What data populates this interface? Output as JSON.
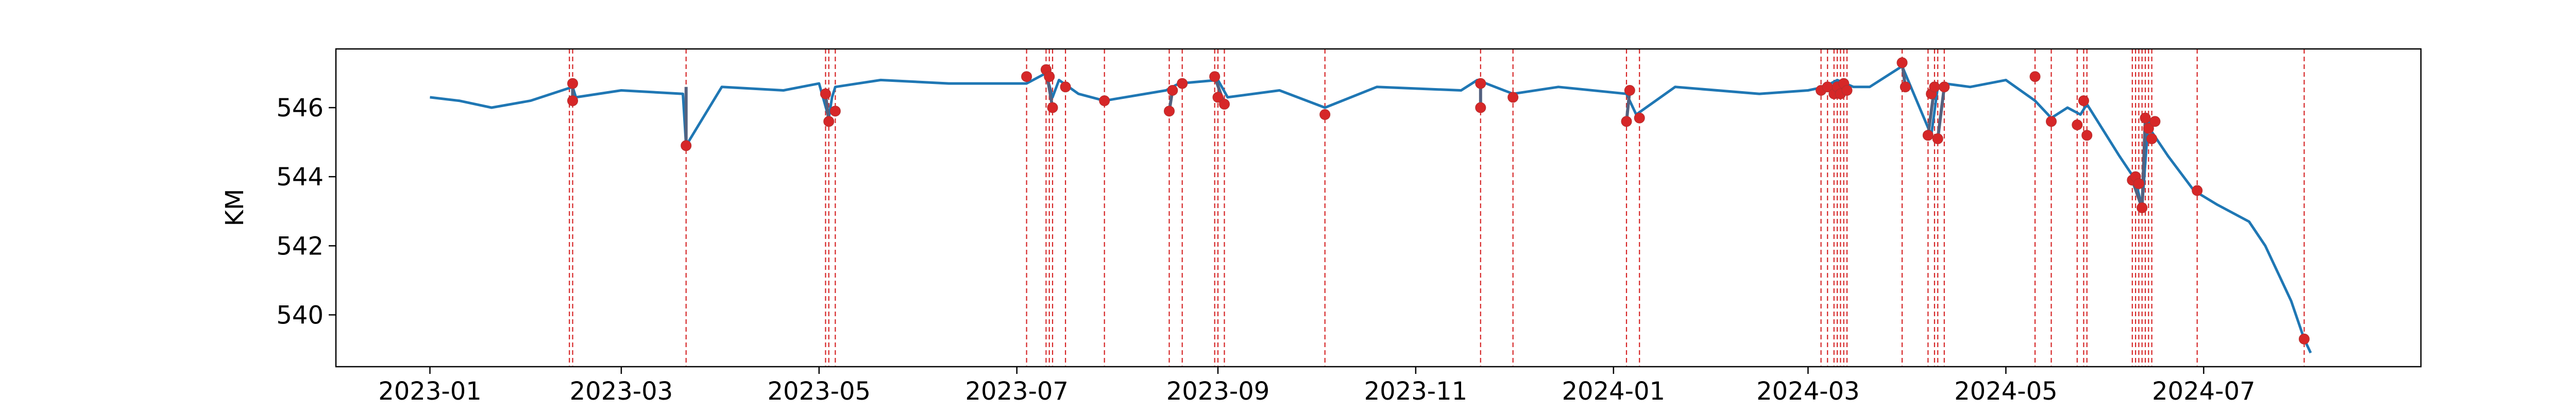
{
  "chart_data": {
    "type": "line",
    "title": "",
    "xlabel": "",
    "ylabel": "KM",
    "xlim": [
      "2022-12-03",
      "2024-09-06"
    ],
    "ylim": [
      538.5,
      547.7
    ],
    "grid": false,
    "legend": "none",
    "colors": {
      "series": "#1f77b4",
      "event_line": "#d62728",
      "event_point": "#d62728"
    },
    "x_ticks": [
      "2023-01",
      "2023-03",
      "2023-05",
      "2023-07",
      "2023-09",
      "2023-11",
      "2024-01",
      "2024-03",
      "2024-05",
      "2024-07"
    ],
    "y_ticks": [
      540,
      542,
      544,
      546
    ],
    "series": [
      {
        "x": [
          "2023-01-01",
          "2023-01-10",
          "2023-01-20",
          "2023-02-01",
          "2023-02-14",
          "2023-02-15",
          "2023-03-01",
          "2023-03-20",
          "2023-03-21",
          "2023-04-01",
          "2023-04-20",
          "2023-05-01",
          "2023-05-04",
          "2023-05-05",
          "2023-05-06",
          "2023-05-20",
          "2023-06-10",
          "2023-07-04",
          "2023-07-10",
          "2023-07-12",
          "2023-07-14",
          "2023-07-20",
          "2023-07-28",
          "2023-08-16",
          "2023-08-20",
          "2023-09-01",
          "2023-09-04",
          "2023-09-20",
          "2023-10-04",
          "2023-10-20",
          "2023-11-15",
          "2023-11-20",
          "2023-12-01",
          "2023-12-15",
          "2024-01-05",
          "2024-01-08",
          "2024-01-20",
          "2024-02-15",
          "2024-03-01",
          "2024-03-06",
          "2024-03-10",
          "2024-03-15",
          "2024-03-20",
          "2024-03-30",
          "2024-04-08",
          "2024-04-10",
          "2024-04-12",
          "2024-04-20",
          "2024-05-01",
          "2024-05-10",
          "2024-05-15",
          "2024-05-20",
          "2024-05-24",
          "2024-05-26",
          "2024-06-05",
          "2024-06-10",
          "2024-06-12",
          "2024-06-14",
          "2024-06-15",
          "2024-06-20",
          "2024-06-28",
          "2024-07-05",
          "2024-07-15",
          "2024-07-20",
          "2024-07-28",
          "2024-08-01",
          "2024-08-03"
        ],
        "y": [
          546.3,
          546.2,
          546.0,
          546.2,
          546.6,
          546.3,
          546.5,
          546.4,
          544.9,
          546.6,
          546.5,
          546.7,
          545.7,
          546.3,
          546.6,
          546.8,
          546.7,
          546.7,
          547.0,
          546.3,
          546.8,
          546.4,
          546.2,
          546.5,
          546.7,
          546.8,
          546.3,
          546.5,
          546.0,
          546.6,
          546.5,
          546.8,
          546.4,
          546.6,
          546.4,
          545.8,
          546.6,
          546.4,
          546.5,
          546.6,
          546.8,
          546.6,
          546.6,
          547.2,
          545.2,
          546.6,
          546.7,
          546.6,
          546.8,
          546.2,
          545.7,
          546.0,
          545.8,
          546.1,
          544.6,
          543.9,
          543.1,
          545.7,
          545.3,
          544.6,
          543.6,
          543.2,
          542.7,
          542.0,
          540.4,
          539.3,
          538.9
        ]
      }
    ],
    "events": [
      "2023-02-13",
      "2023-02-14",
      "2023-03-21",
      "2023-05-03",
      "2023-05-04",
      "2023-05-06",
      "2023-07-04",
      "2023-07-10",
      "2023-07-11",
      "2023-07-12",
      "2023-07-16",
      "2023-07-28",
      "2023-08-17",
      "2023-08-21",
      "2023-08-31",
      "2023-09-01",
      "2023-09-03",
      "2023-10-04",
      "2023-11-21",
      "2023-12-01",
      "2024-01-05",
      "2024-01-09",
      "2024-03-05",
      "2024-03-07",
      "2024-03-09",
      "2024-03-10",
      "2024-03-11",
      "2024-03-12",
      "2024-03-13",
      "2024-03-30",
      "2024-04-07",
      "2024-04-09",
      "2024-04-10",
      "2024-04-12",
      "2024-05-10",
      "2024-05-15",
      "2024-05-23",
      "2024-05-25",
      "2024-05-26",
      "2024-06-09",
      "2024-06-10",
      "2024-06-11",
      "2024-06-12",
      "2024-06-13",
      "2024-06-14",
      "2024-06-15",
      "2024-06-29",
      "2024-08-01"
    ],
    "event_points": [
      {
        "x": "2023-02-14",
        "y": 546.7
      },
      {
        "x": "2023-02-14",
        "y": 546.2
      },
      {
        "x": "2023-03-21",
        "y": 544.9
      },
      {
        "x": "2023-05-03",
        "y": 546.4
      },
      {
        "x": "2023-05-04",
        "y": 545.6
      },
      {
        "x": "2023-05-06",
        "y": 545.9
      },
      {
        "x": "2023-07-04",
        "y": 546.9
      },
      {
        "x": "2023-07-10",
        "y": 547.1
      },
      {
        "x": "2023-07-11",
        "y": 546.9
      },
      {
        "x": "2023-07-12",
        "y": 546.0
      },
      {
        "x": "2023-07-16",
        "y": 546.6
      },
      {
        "x": "2023-07-28",
        "y": 546.2
      },
      {
        "x": "2023-08-17",
        "y": 545.9
      },
      {
        "x": "2023-08-18",
        "y": 546.5
      },
      {
        "x": "2023-08-21",
        "y": 546.7
      },
      {
        "x": "2023-08-31",
        "y": 546.9
      },
      {
        "x": "2023-09-01",
        "y": 546.3
      },
      {
        "x": "2023-09-03",
        "y": 546.1
      },
      {
        "x": "2023-10-04",
        "y": 545.8
      },
      {
        "x": "2023-11-21",
        "y": 546.7
      },
      {
        "x": "2023-11-21",
        "y": 546.0
      },
      {
        "x": "2023-12-01",
        "y": 546.3
      },
      {
        "x": "2024-01-05",
        "y": 545.6
      },
      {
        "x": "2024-01-06",
        "y": 546.5
      },
      {
        "x": "2024-01-09",
        "y": 545.7
      },
      {
        "x": "2024-03-05",
        "y": 546.5
      },
      {
        "x": "2024-03-07",
        "y": 546.6
      },
      {
        "x": "2024-03-09",
        "y": 546.4
      },
      {
        "x": "2024-03-10",
        "y": 546.6
      },
      {
        "x": "2024-03-11",
        "y": 546.4
      },
      {
        "x": "2024-03-12",
        "y": 546.7
      },
      {
        "x": "2024-03-13",
        "y": 546.5
      },
      {
        "x": "2024-03-30",
        "y": 547.3
      },
      {
        "x": "2024-03-31",
        "y": 546.6
      },
      {
        "x": "2024-04-07",
        "y": 545.2
      },
      {
        "x": "2024-04-08",
        "y": 546.4
      },
      {
        "x": "2024-04-09",
        "y": 546.6
      },
      {
        "x": "2024-04-10",
        "y": 545.1
      },
      {
        "x": "2024-04-12",
        "y": 546.6
      },
      {
        "x": "2024-05-10",
        "y": 546.9
      },
      {
        "x": "2024-05-15",
        "y": 545.6
      },
      {
        "x": "2024-05-23",
        "y": 545.5
      },
      {
        "x": "2024-05-25",
        "y": 546.2
      },
      {
        "x": "2024-05-26",
        "y": 545.2
      },
      {
        "x": "2024-06-09",
        "y": 543.9
      },
      {
        "x": "2024-06-10",
        "y": 544.0
      },
      {
        "x": "2024-06-11",
        "y": 543.8
      },
      {
        "x": "2024-06-12",
        "y": 543.1
      },
      {
        "x": "2024-06-13",
        "y": 545.7
      },
      {
        "x": "2024-06-14",
        "y": 545.4
      },
      {
        "x": "2024-06-15",
        "y": 545.1
      },
      {
        "x": "2024-06-16",
        "y": 545.6
      },
      {
        "x": "2024-06-29",
        "y": 543.6
      },
      {
        "x": "2024-08-01",
        "y": 539.3
      }
    ],
    "event_links": [
      [
        "2023-02-14",
        546.7,
        "2023-02-14",
        546.2
      ],
      [
        "2023-03-21",
        546.6,
        "2023-03-21",
        544.9
      ],
      [
        "2023-05-03",
        546.4,
        "2023-05-04",
        545.6
      ],
      [
        "2023-07-10",
        547.1,
        "2023-07-12",
        546.0
      ],
      [
        "2023-08-17",
        545.9,
        "2023-08-18",
        546.5
      ],
      [
        "2023-08-31",
        546.9,
        "2023-09-03",
        546.1
      ],
      [
        "2023-11-21",
        546.7,
        "2023-11-21",
        546.0
      ],
      [
        "2024-01-05",
        545.6,
        "2024-01-06",
        546.5
      ],
      [
        "2024-03-30",
        547.3,
        "2024-03-31",
        546.6
      ],
      [
        "2024-04-07",
        545.2,
        "2024-04-09",
        546.6
      ],
      [
        "2024-04-10",
        545.1,
        "2024-04-12",
        546.6
      ],
      [
        "2024-06-12",
        543.1,
        "2024-06-13",
        545.7
      ],
      [
        "2024-06-09",
        543.9,
        "2024-06-12",
        543.1
      ]
    ]
  }
}
